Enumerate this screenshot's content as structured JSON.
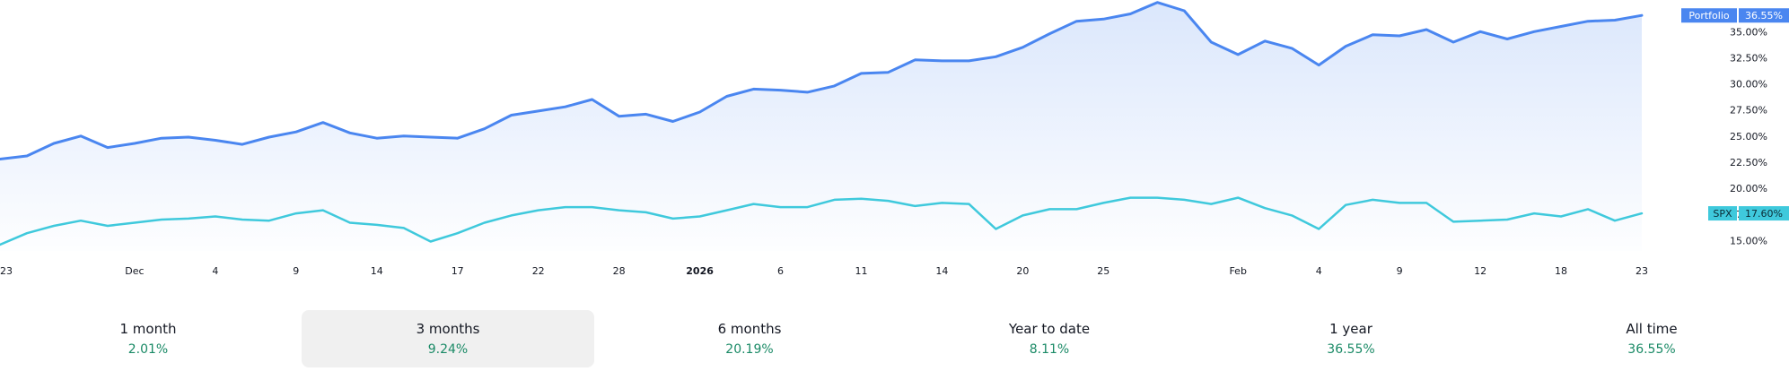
{
  "chart_data": {
    "type": "area",
    "y_unit": "%",
    "ylim": [
      14.0,
      37.0
    ],
    "y_ticks": [
      "15.00%",
      "17.50%",
      "20.00%",
      "22.50%",
      "25.00%",
      "27.50%",
      "30.00%",
      "32.50%",
      "35.00%"
    ],
    "y_tick_values": [
      15,
      17.5,
      20,
      22.5,
      25,
      27.5,
      30,
      32.5,
      35
    ],
    "x_ticks": [
      "23",
      "Dec",
      "4",
      "9",
      "14",
      "17",
      "22",
      "28",
      "2026",
      "6",
      "11",
      "14",
      "20",
      "25",
      "Feb",
      "4",
      "9",
      "12",
      "18",
      "23"
    ],
    "x_tick_index": [
      0,
      5,
      8,
      11,
      14,
      17,
      20,
      23,
      26,
      29,
      32,
      35,
      38,
      41,
      46,
      49,
      52,
      55,
      58,
      61
    ],
    "grid": false,
    "series": [
      {
        "name": "Portfolio",
        "color": "#4a86f0",
        "last_label": "36.55%",
        "values": [
          22.8,
          23.1,
          24.3,
          25.0,
          23.9,
          24.3,
          24.8,
          24.9,
          24.6,
          24.2,
          24.9,
          25.4,
          26.3,
          25.3,
          24.8,
          25.0,
          24.9,
          24.8,
          25.7,
          27.0,
          27.4,
          27.8,
          28.5,
          26.9,
          27.1,
          26.4,
          27.3,
          28.8,
          29.5,
          29.4,
          29.2,
          29.8,
          31.0,
          31.1,
          32.3,
          32.2,
          32.2,
          32.6,
          33.5,
          34.8,
          36.0,
          36.2,
          36.7,
          37.8,
          37.0,
          34.0,
          32.8,
          34.1,
          33.4,
          31.8,
          33.6,
          34.7,
          34.6,
          35.2,
          34.0,
          35.0,
          34.3,
          35.0,
          35.5,
          36.0,
          36.1,
          36.55
        ]
      },
      {
        "name": "SPX",
        "color": "#3fc9dc",
        "last_label": "17.60%",
        "values": [
          14.6,
          15.7,
          16.4,
          16.9,
          16.4,
          16.7,
          17.0,
          17.1,
          17.3,
          17.0,
          16.9,
          17.6,
          17.9,
          16.7,
          16.5,
          16.2,
          14.9,
          15.7,
          16.7,
          17.4,
          17.9,
          18.2,
          18.2,
          17.9,
          17.7,
          17.1,
          17.3,
          17.9,
          18.5,
          18.2,
          18.2,
          18.9,
          19.0,
          18.8,
          18.3,
          18.6,
          18.5,
          16.1,
          17.4,
          18.0,
          18.0,
          18.6,
          19.1,
          19.1,
          18.9,
          18.5,
          19.1,
          18.1,
          17.4,
          16.1,
          18.4,
          18.9,
          18.6,
          18.6,
          16.8,
          16.9,
          17.0,
          17.6,
          17.3,
          18.0,
          16.9,
          17.6
        ]
      }
    ]
  },
  "periods": [
    {
      "label": "1 month",
      "value": "2.01%",
      "selected": false
    },
    {
      "label": "3 months",
      "value": "9.24%",
      "selected": true
    },
    {
      "label": "6 months",
      "value": "20.19%",
      "selected": false
    },
    {
      "label": "Year to date",
      "value": "8.11%",
      "selected": false
    },
    {
      "label": "1 year",
      "value": "36.55%",
      "selected": false
    },
    {
      "label": "All time",
      "value": "36.55%",
      "selected": false
    }
  ]
}
